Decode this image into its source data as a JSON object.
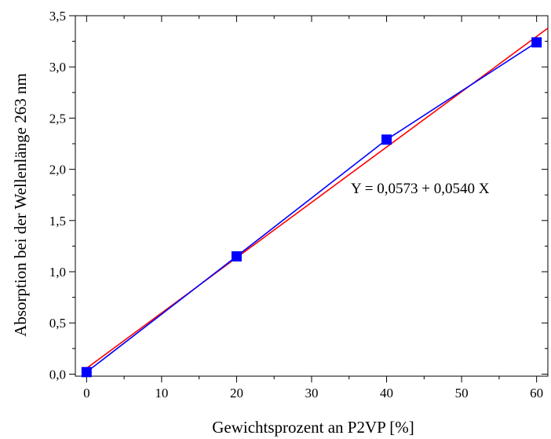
{
  "chart_data": {
    "type": "scatter",
    "title": "",
    "xlabel": "Gewichtsprozent an P2VP [%]",
    "ylabel": "Absorption bei der Wellenlänge 263 nm",
    "xlim": [
      -1.5,
      61.5
    ],
    "ylim": [
      -0.02,
      3.5
    ],
    "x_ticks": [
      "0",
      "10",
      "20",
      "30",
      "40",
      "50",
      "60"
    ],
    "y_ticks": [
      "0,0",
      "0,5",
      "1,0",
      "1,5",
      "2,0",
      "2,5",
      "3,0",
      "3,5"
    ],
    "series": [
      {
        "marker": "square",
        "line": "connected",
        "color": "#0000ff",
        "x": [
          0,
          20,
          40,
          60
        ],
        "y": [
          0.02,
          1.15,
          2.29,
          3.24
        ]
      }
    ],
    "fit": {
      "color": "#ff0000",
      "intercept": 0.0573,
      "slope": 0.054,
      "x_range": [
        0,
        61.5
      ]
    },
    "annotation": "Y = 0,0573 + 0,0540 X",
    "grid": false,
    "legend": "none"
  }
}
